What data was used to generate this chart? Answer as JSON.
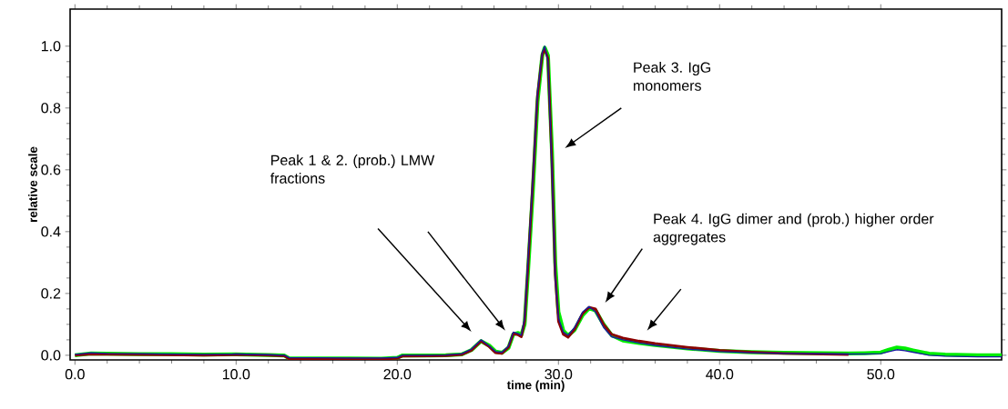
{
  "chart_data": {
    "type": "line",
    "xlabel": "time (min)",
    "ylabel": "relative scale",
    "xlim": [
      -0.3,
      57.5
    ],
    "ylim": [
      -0.015,
      1.12
    ],
    "xticks": [
      {
        "value": 0,
        "label": "0.0"
      },
      {
        "value": 10,
        "label": "10.0"
      },
      {
        "value": 20,
        "label": "20.0"
      },
      {
        "value": 30,
        "label": "30.0"
      },
      {
        "value": 40,
        "label": "40.0"
      },
      {
        "value": 50,
        "label": "50.0"
      }
    ],
    "yticks": [
      {
        "value": 0,
        "label": "0.0"
      },
      {
        "value": 0.2,
        "label": "0.2"
      },
      {
        "value": 0.4,
        "label": "0.4"
      },
      {
        "value": 0.6,
        "label": "0.6"
      },
      {
        "value": 0.8,
        "label": "0.8"
      },
      {
        "value": 1.0,
        "label": "1.0"
      }
    ],
    "grid": false,
    "marker": "none",
    "line_style": "solid",
    "annotations": [
      "Peak 1 & 2. (prob.) LMW fractions",
      "Peak 3. IgG monomers",
      "Peak 4. IgG dimer and (prob.) higher order aggregates"
    ],
    "x": [
      0,
      1,
      2,
      4,
      6,
      8,
      10,
      12,
      13,
      13.3,
      15,
      17,
      19,
      20,
      20.3,
      22,
      23,
      24,
      24.6,
      25.2,
      25.7,
      26.1,
      26.5,
      26.9,
      27.2,
      27.5,
      27.7,
      27.9,
      28.1,
      28.4,
      28.7,
      29.0,
      29.15,
      29.35,
      29.6,
      29.8,
      30.0,
      30.3,
      30.6,
      31.0,
      31.5,
      31.9,
      32.3,
      32.8,
      33.3,
      34,
      35,
      36,
      38,
      40,
      42,
      44,
      46,
      48,
      49,
      50,
      50.5,
      51,
      51.5,
      52,
      53,
      54,
      56,
      57.5
    ],
    "series": [
      {
        "color": "#00ee00",
        "values": [
          0.0,
          0.006,
          0.005,
          0.004,
          0.004,
          0.002,
          0.003,
          0.001,
          -0.001,
          -0.01,
          -0.01,
          -0.01,
          -0.011,
          -0.008,
          -0.001,
          -0.001,
          0.0,
          0.003,
          0.017,
          0.046,
          0.032,
          0.012,
          0.008,
          0.024,
          0.068,
          0.072,
          0.066,
          0.1,
          0.26,
          0.52,
          0.82,
          0.97,
          0.995,
          0.97,
          0.66,
          0.3,
          0.14,
          0.08,
          0.064,
          0.082,
          0.13,
          0.152,
          0.145,
          0.1,
          0.065,
          0.048,
          0.04,
          0.033,
          0.022,
          0.014,
          0.01,
          0.008,
          0.007,
          0.006,
          0.007,
          0.009,
          0.018,
          0.025,
          0.022,
          0.016,
          0.005,
          0.002,
          0.0,
          0.0
        ]
      },
      {
        "color": "#8b0000",
        "values": [
          0.0,
          0.004,
          0.003,
          0.002,
          0.001,
          0.0,
          0.002,
          0.0,
          -0.002,
          -0.012,
          -0.012,
          -0.012,
          -0.012,
          -0.01,
          -0.003,
          -0.002,
          -0.001,
          0.002,
          0.016,
          0.046,
          0.028,
          0.008,
          0.006,
          0.026,
          0.07,
          0.066,
          0.06,
          0.11,
          0.28,
          0.55,
          0.84,
          0.975,
          0.99,
          0.96,
          0.62,
          0.26,
          0.11,
          0.068,
          0.058,
          0.084,
          0.135,
          0.155,
          0.15,
          0.1,
          0.068,
          0.056,
          0.046,
          0.038,
          0.026,
          0.016,
          0.01,
          0.006,
          0.004,
          0.002,
          null,
          null,
          null,
          null,
          null,
          null,
          null,
          null,
          null,
          null
        ]
      },
      {
        "color": "#1a1aa0",
        "values": [
          0.003,
          0.008,
          0.006,
          0.005,
          0.004,
          0.003,
          0.004,
          0.002,
          0.0,
          -0.008,
          -0.008,
          -0.009,
          -0.009,
          -0.007,
          0.0,
          0.0,
          0.001,
          0.005,
          0.02,
          0.05,
          0.03,
          0.012,
          0.01,
          0.03,
          0.075,
          0.07,
          0.065,
          0.12,
          0.3,
          0.56,
          0.85,
          0.98,
          1.0,
          0.95,
          0.6,
          0.25,
          0.12,
          0.075,
          0.065,
          0.09,
          0.14,
          0.158,
          0.14,
          0.09,
          0.06,
          0.05,
          0.04,
          0.032,
          0.02,
          0.012,
          0.008,
          0.006,
          0.005,
          0.004,
          0.004,
          0.005,
          0.012,
          0.018,
          0.015,
          0.01,
          0.0,
          -0.003,
          -0.005,
          -0.005
        ]
      }
    ]
  }
}
